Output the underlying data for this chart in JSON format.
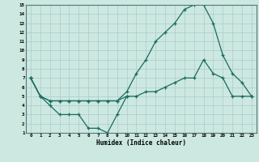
{
  "xlabel": "Humidex (Indice chaleur)",
  "background_color": "#cce8e0",
  "grid_color": "#aacccc",
  "line_color": "#1a6b60",
  "x_all": [
    0,
    1,
    2,
    3,
    4,
    5,
    6,
    7,
    8,
    9,
    10,
    11,
    12,
    13,
    14,
    15,
    16,
    17,
    18,
    19,
    20,
    21,
    22,
    23
  ],
  "line1_x": [
    0,
    1,
    2,
    3,
    4,
    5,
    6,
    7,
    8,
    9,
    10
  ],
  "line1_y": [
    7,
    5,
    4,
    3,
    3,
    3,
    1.5,
    1.5,
    1,
    3,
    5
  ],
  "line2_x": [
    0,
    1,
    2,
    3,
    4,
    5,
    6,
    7,
    8,
    9,
    10,
    11,
    12,
    13,
    14,
    15,
    16,
    17,
    18,
    19,
    20,
    21,
    22,
    23
  ],
  "line2_y": [
    7,
    5,
    4.5,
    4.5,
    4.5,
    4.5,
    4.5,
    4.5,
    4.5,
    4.5,
    5,
    5,
    5.5,
    5.5,
    6,
    6.5,
    7,
    7,
    9,
    7.5,
    7,
    5,
    5,
    5
  ],
  "line3_x": [
    0,
    1,
    2,
    3,
    4,
    5,
    6,
    7,
    8,
    9,
    10,
    11,
    12,
    13,
    14,
    15,
    16,
    17,
    18,
    19,
    20,
    21,
    22,
    23
  ],
  "line3_y": [
    7,
    5,
    4.5,
    4.5,
    4.5,
    4.5,
    4.5,
    4.5,
    4.5,
    4.5,
    5.5,
    7.5,
    9,
    11,
    12,
    13,
    14.5,
    15,
    15,
    13,
    9.5,
    7.5,
    6.5,
    5
  ],
  "ylim": [
    1,
    15
  ],
  "xlim": [
    -0.5,
    23.5
  ],
  "yticks": [
    1,
    2,
    3,
    4,
    5,
    6,
    7,
    8,
    9,
    10,
    11,
    12,
    13,
    14,
    15
  ],
  "xticks": [
    0,
    1,
    2,
    3,
    4,
    5,
    6,
    7,
    8,
    9,
    10,
    11,
    12,
    13,
    14,
    15,
    16,
    17,
    18,
    19,
    20,
    21,
    22,
    23
  ]
}
